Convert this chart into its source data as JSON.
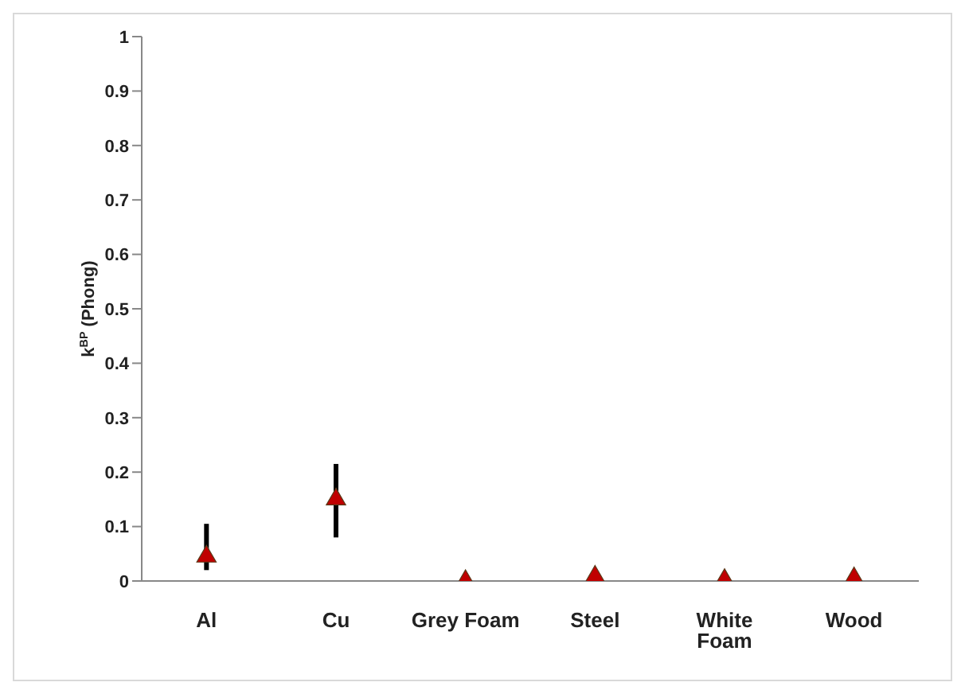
{
  "chart_data": {
    "type": "scatter",
    "ylabel": "k$^{BP}$ (Phong)",
    "categories": [
      "Al",
      "Cu",
      "Grey Foam",
      "Steel",
      "White Foam",
      "Wood"
    ],
    "values": [
      0.045,
      0.15,
      0.0,
      0.008,
      0.002,
      0.005
    ],
    "errors": [
      [
        0.02,
        0.105
      ],
      [
        0.08,
        0.215
      ],
      null,
      null,
      null,
      null
    ],
    "color": "#c00000",
    "marker": "triangle",
    "ylim": [
      0,
      1
    ],
    "yticks": [
      0,
      0.1,
      0.2,
      0.3,
      0.4,
      0.5,
      0.6,
      0.7,
      0.8,
      0.9,
      1
    ],
    "grid": false,
    "legend": false
  }
}
